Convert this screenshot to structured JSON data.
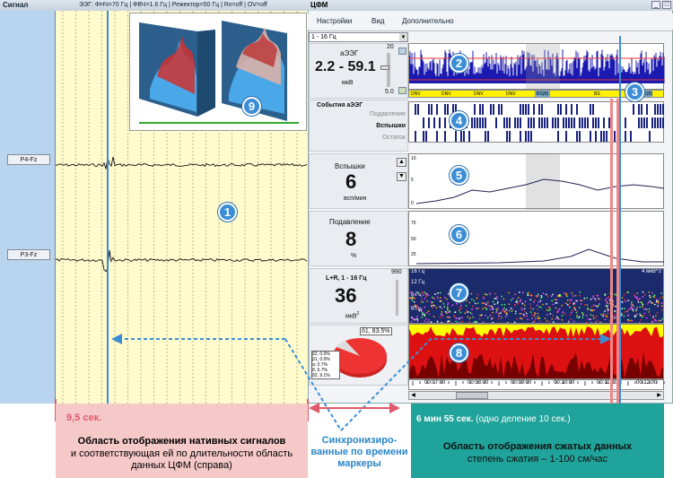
{
  "left_window": {
    "title": "Сигнал",
    "info": "ЭЭГ: ФНЧ=70 Гц | ФВЧ=1.6 Гц | Режектор=50 Гц | Rx=off | OV=off",
    "channels": [
      "P4-Fz",
      "P3-Fz"
    ]
  },
  "right_window": {
    "title": "ЦФМ",
    "menu": [
      "Настройки",
      "Вид",
      "Дополнительно"
    ],
    "freq_select": "1 - 16 Гц",
    "aeeg": {
      "label": "аЭЭГ",
      "range": "2.2 - 59.1",
      "unit": "мкВ",
      "scale_top": "20",
      "scale_bottom": "5.0"
    },
    "events": {
      "title": "События аЭЭГ",
      "rows": [
        "Подавление",
        "Вспышки",
        "Остаток"
      ]
    },
    "bursts": {
      "label": "Вспышки",
      "value": "6",
      "unit": "всп/мин",
      "ticks": [
        "10",
        "5",
        "0"
      ]
    },
    "suppression": {
      "label": "Подавление",
      "value": "8",
      "unit": "%",
      "ticks": [
        "75",
        "50",
        "25"
      ]
    },
    "power": {
      "label": "L+R, 1 - 16 Гц",
      "value": "36",
      "unit": "мкВ",
      "unit_sup": "2",
      "scale": "990"
    },
    "spectrum_labels": [
      "16 Гц",
      "12 Гц",
      "8 Гц",
      "4 Гц"
    ],
    "spectrum_unit": "4 мкВ^2",
    "pie": {
      "main": "δ1, 83.5%",
      "items": [
        "β2, 0.0%",
        "β1, 0.0%",
        "α, 0.7%",
        "θ, 6.7%",
        "δ2, 9.1%"
      ]
    },
    "aeeg_band_labels": [
      "DNV",
      "DNV",
      "DNV",
      "DNV",
      "BS(B)",
      "BS",
      "BS(B)"
    ],
    "time_ticks": [
      "00:07:00",
      "00:08:00",
      "00:09:00",
      "00:10:00",
      "00:11:00",
      "00:12:00"
    ]
  },
  "badges": [
    "1",
    "2",
    "3",
    "4",
    "5",
    "6",
    "7",
    "8",
    "9"
  ],
  "captions": {
    "left_time": "9,5 сек.",
    "left_main_bold": "Область отображения нативных сигналов",
    "left_main_rest": "и соответствующая ей по длительности область данных ЦФМ (справа)",
    "sync": "Синхронизиро-ванные по времени маркеры",
    "right_time_bold": "6 мин 55 сек.",
    "right_time_rest": "(одно деление 10 сек.)",
    "right_main_bold": "Область отображения сжатых данных",
    "right_main_rest": "степень сжатия – 1-100 см/час"
  },
  "colors": {
    "signal_bg": "#fffbcc",
    "label_col": "#b8d4ee",
    "marker": "#3b8ed6",
    "teal": "#1fa39a",
    "pink": "#f6c9c9",
    "arrow": "#e05a6a"
  }
}
